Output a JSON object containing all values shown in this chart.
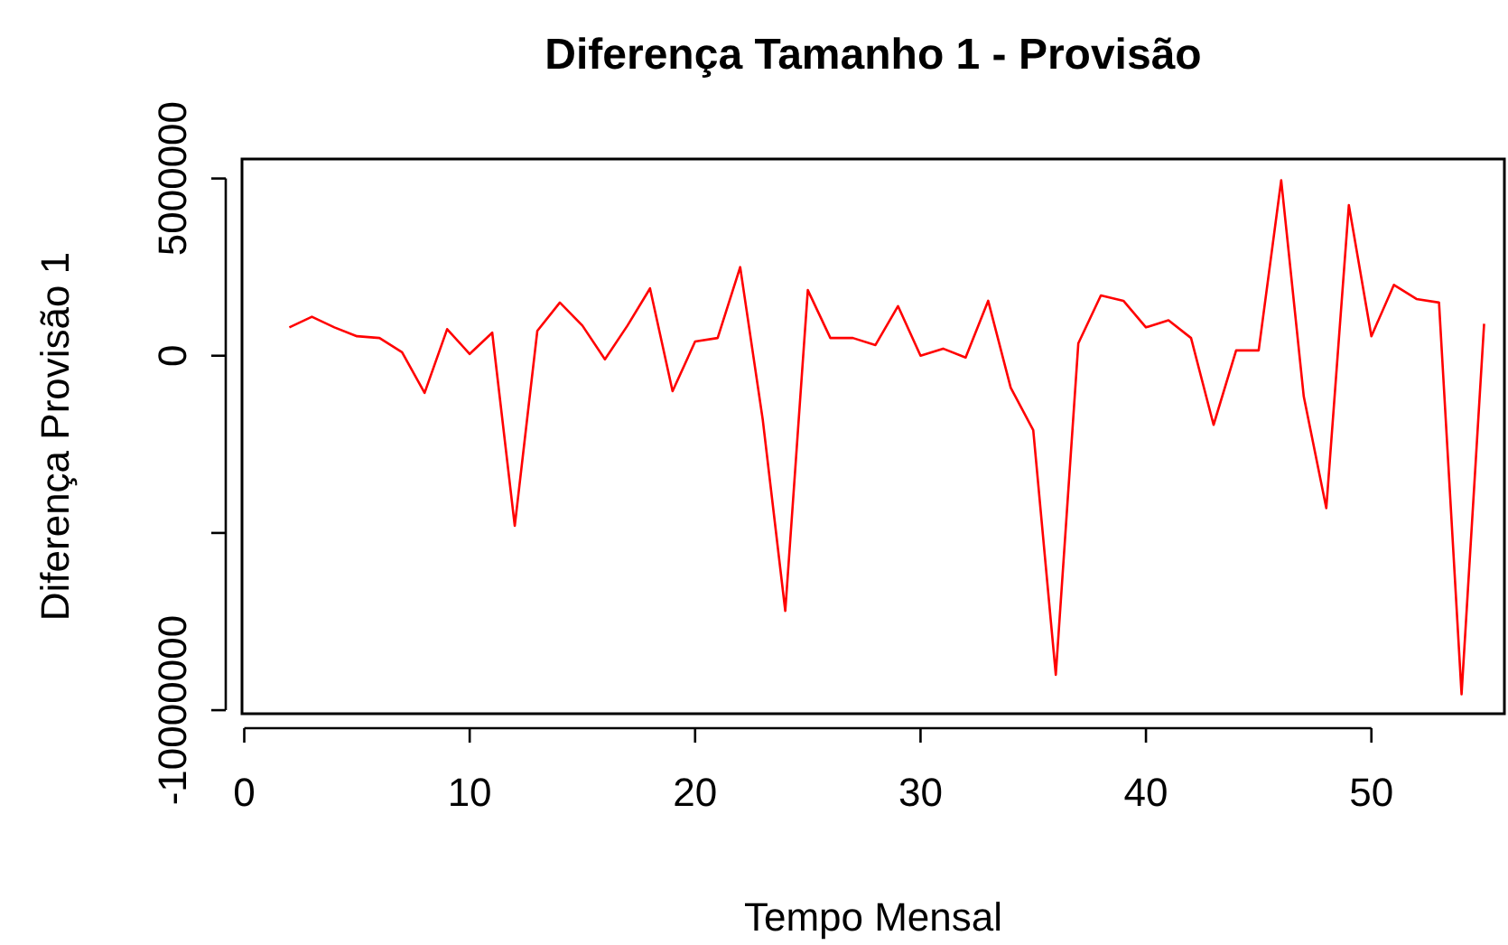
{
  "chart_data": {
    "type": "line",
    "title": "Diferença Tamanho 1 - Provisão",
    "xlabel": "Tempo Mensal",
    "ylabel": "Diferença Provisão 1",
    "x": [
      2,
      3,
      4,
      5,
      6,
      7,
      8,
      9,
      10,
      11,
      12,
      13,
      14,
      15,
      16,
      17,
      18,
      19,
      20,
      21,
      22,
      23,
      24,
      25,
      26,
      27,
      28,
      29,
      30,
      31,
      32,
      33,
      34,
      35,
      36,
      37,
      38,
      39,
      40,
      41,
      42,
      43,
      44,
      45,
      46,
      47,
      48,
      49,
      50,
      51,
      52,
      53,
      54,
      55
    ],
    "series": [
      {
        "color": "#ff0000",
        "values": [
          800000,
          1100000,
          800000,
          550000,
          500000,
          100000,
          -1050000,
          750000,
          50000,
          650000,
          -4800000,
          700000,
          1500000,
          850000,
          -100000,
          850000,
          1900000,
          -1000000,
          400000,
          500000,
          2500000,
          -1800000,
          -7200000,
          1850000,
          500000,
          500000,
          300000,
          1400000,
          0,
          200000,
          -50000,
          1550000,
          -900000,
          -2100000,
          -9000000,
          350000,
          1700000,
          1550000,
          800000,
          1000000,
          500000,
          -1950000,
          150000,
          150000,
          4950000,
          -1150000,
          -4300000,
          4250000,
          550000,
          2000000,
          1600000,
          1500000,
          -9550000,
          900000
        ]
      }
    ],
    "xlim": [
      -0.1,
      55.9
    ],
    "ylim": [
      -10100000,
      5550000
    ],
    "xticks": [
      0,
      10,
      20,
      30,
      40,
      50
    ],
    "yticks": [
      5000000,
      0,
      {
        "value": -5000000,
        "label": null
      },
      -10000000
    ],
    "grid": false,
    "marker": "none",
    "line_style": "solid"
  }
}
